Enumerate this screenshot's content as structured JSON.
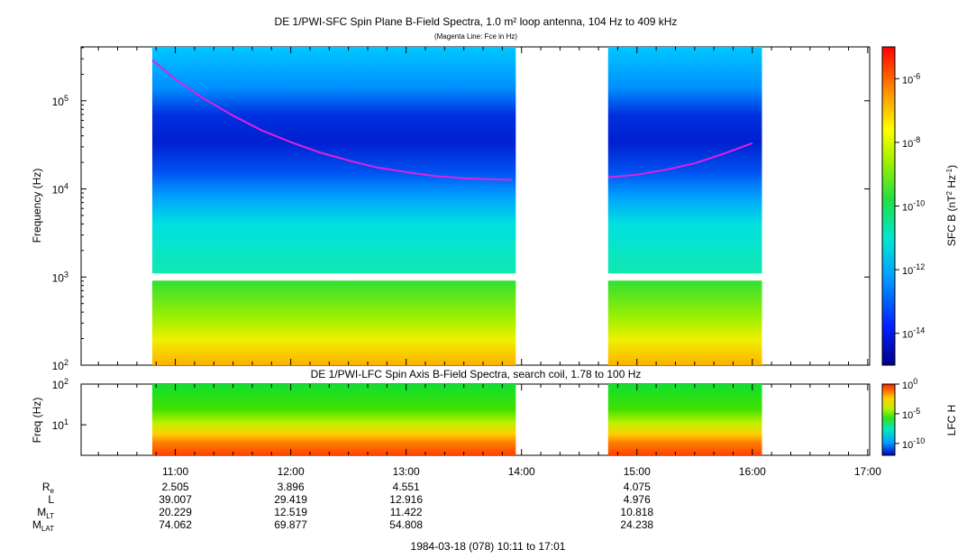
{
  "chart_data": [
    {
      "type": "heatmap",
      "title": "DE 1/PWI-SFC  Spin Plane B-Field Spectra, 1.0 m² loop antenna, 104 Hz to 409 kHz",
      "subtitle": "(Magenta Line: Fce in Hz)",
      "ylabel": "Frequency (Hz)",
      "y_scale": "log",
      "ylim": [
        100,
        409000
      ],
      "y_ticks": [
        {
          "value": 100,
          "label": "10",
          "exp": "2"
        },
        {
          "value": 1000,
          "label": "10",
          "exp": "3"
        },
        {
          "value": 10000,
          "label": "10",
          "exp": "4"
        },
        {
          "value": 100000,
          "label": "10",
          "exp": "5"
        }
      ],
      "xlim": [
        "10:11",
        "17:01"
      ],
      "x_ticks": [
        "11:00",
        "12:00",
        "13:00",
        "14:00",
        "15:00",
        "16:00",
        "17:00"
      ],
      "data_intervals": [
        [
          "10:48",
          "13:57"
        ],
        [
          "14:45",
          "16:05"
        ]
      ],
      "colorbar": {
        "label": "SFC B (nT",
        "label_sup": "2",
        "label_mid": " Hz",
        "label_sup2": "-1",
        "label_end": ")",
        "scale": "log",
        "range": [
          1e-15,
          1e-05
        ],
        "ticks": [
          {
            "exp": -6,
            "label": "10",
            "sup": "-6"
          },
          {
            "exp": -8,
            "label": "10",
            "sup": "-8"
          },
          {
            "exp": -10,
            "label": "10",
            "sup": "-10"
          },
          {
            "exp": -12,
            "label": "10",
            "sup": "-12"
          },
          {
            "exp": -14,
            "label": "10",
            "sup": "-14"
          }
        ]
      },
      "overlay_line": {
        "name": "Fce",
        "color": "#e020e0",
        "segments": [
          {
            "times": [
              "10:48",
              "11:00",
              "11:15",
              "11:30",
              "11:45",
              "12:00",
              "12:15",
              "12:30",
              "12:45",
              "13:00",
              "13:15",
              "13:30",
              "13:45",
              "13:55"
            ],
            "values_hz": [
              290000,
              175000,
              105000,
              68000,
              46000,
              34000,
              26000,
              21000,
              17500,
              15500,
              14000,
              13200,
              12800,
              12700
            ]
          },
          {
            "times": [
              "14:45",
              "15:00",
              "15:15",
              "15:30",
              "15:45",
              "16:00"
            ],
            "values_hz": [
              13500,
              14500,
              16500,
              19500,
              25000,
              33000
            ]
          }
        ]
      }
    },
    {
      "type": "heatmap",
      "title": "DE 1/PWI-LFC  Spin Axis B-Field Spectra, search coil, 1.78 to 100 Hz",
      "ylabel": "Freq (Hz)",
      "y_scale": "log",
      "ylim": [
        1.78,
        100
      ],
      "y_ticks": [
        {
          "value": 10,
          "label": "10",
          "exp": "1"
        },
        {
          "value": 100,
          "label": "10",
          "exp": "2"
        }
      ],
      "colorbar": {
        "label": "LFC H",
        "scale": "log",
        "range": [
          1e-12,
          1
        ],
        "ticks": [
          {
            "exp": 0,
            "label": "10",
            "sup": "0"
          },
          {
            "exp": -5,
            "label": "10",
            "sup": "-5"
          },
          {
            "exp": -10,
            "label": "10",
            "sup": "-10"
          }
        ]
      }
    }
  ],
  "colors": {
    "fce_line": "#e020e0",
    "gap": "#ffffff"
  },
  "ephemeris": {
    "rows": [
      {
        "label": "R",
        "sub": "e",
        "values": {
          "11:00": "2.505",
          "12:00": "3.896",
          "13:00": "4.551",
          "15:00": "4.075"
        }
      },
      {
        "label": "L",
        "sub": "",
        "values": {
          "11:00": "39.007",
          "12:00": "29.419",
          "13:00": "12.916",
          "15:00": "4.976"
        }
      },
      {
        "label": "M",
        "sub": "LT",
        "values": {
          "11:00": "20.229",
          "12:00": "12.519",
          "13:00": "11.422",
          "15:00": "10.818"
        }
      },
      {
        "label": "M",
        "sub": "LAT",
        "values": {
          "11:00": "74.062",
          "12:00": "69.877",
          "13:00": "54.808",
          "15:00": "24.238"
        }
      }
    ]
  },
  "footer": "1984-03-18 (078) 10:11 to 17:01"
}
